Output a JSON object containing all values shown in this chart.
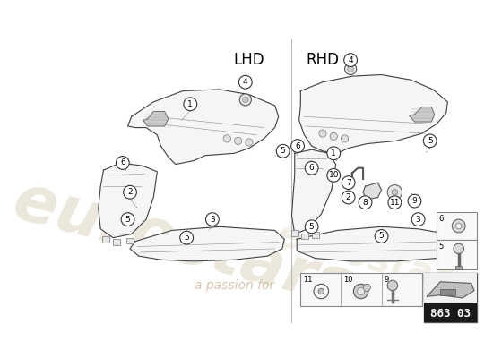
{
  "background_color": "#ffffff",
  "lhd_label": "LHD",
  "rhd_label": "RHD",
  "part_number_box": "863 03",
  "small_parts_row": [
    "11",
    "10",
    "9"
  ],
  "side_legend": [
    "6",
    "5"
  ],
  "font_color": "#000000",
  "line_color": "#404040",
  "fill_color": "#f5f5f5",
  "watermark_eurostars_color": "#d8d0b8",
  "watermark_slogan_color": "#c8b090",
  "page_ref_bg": "#1a1a1a",
  "page_ref_text": "#ffffff",
  "divider_color": "#bbbbbb"
}
